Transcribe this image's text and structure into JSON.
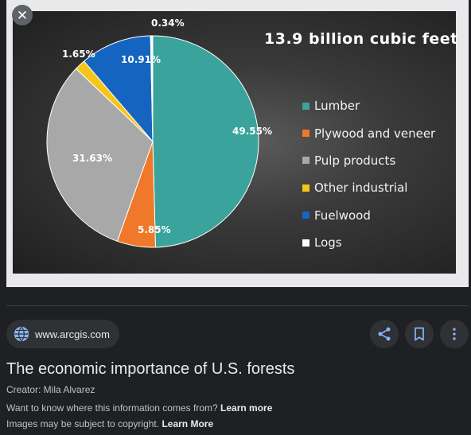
{
  "close": {
    "label": "✕"
  },
  "chart_data": {
    "type": "pie",
    "title": "13.9 billion cubic feet",
    "categories": [
      "Lumber",
      "Plywood and veneer",
      "Pulp products",
      "Other industrial",
      "Fuelwood",
      "Logs"
    ],
    "values": [
      49.55,
      5.85,
      31.63,
      1.65,
      10.91,
      0.34
    ],
    "data_labels": [
      "49.55%",
      "5.85%",
      "31.63%",
      "1.65%",
      "10.91%",
      "0.34%"
    ],
    "colors": [
      "#3aa39b",
      "#f0782a",
      "#a8a8a8",
      "#f5c518",
      "#1565c0",
      "#ffffff"
    ],
    "legend_position": "right"
  },
  "source": {
    "domain": "www.arcgis.com",
    "icon": "globe-icon"
  },
  "actions": [
    {
      "name": "share-button",
      "icon": "share-icon"
    },
    {
      "name": "save-button",
      "icon": "bookmark-icon"
    },
    {
      "name": "more-options-button",
      "icon": "more-vert-icon"
    }
  ],
  "result": {
    "title": "The economic importance of U.S. forests",
    "creator": "Creator: Mila Alvarez",
    "info_question": "Want to know where this information comes from?",
    "info_link": "Learn more",
    "copyright_text": "Images may be subject to copyright.",
    "copyright_link": "Learn More"
  }
}
